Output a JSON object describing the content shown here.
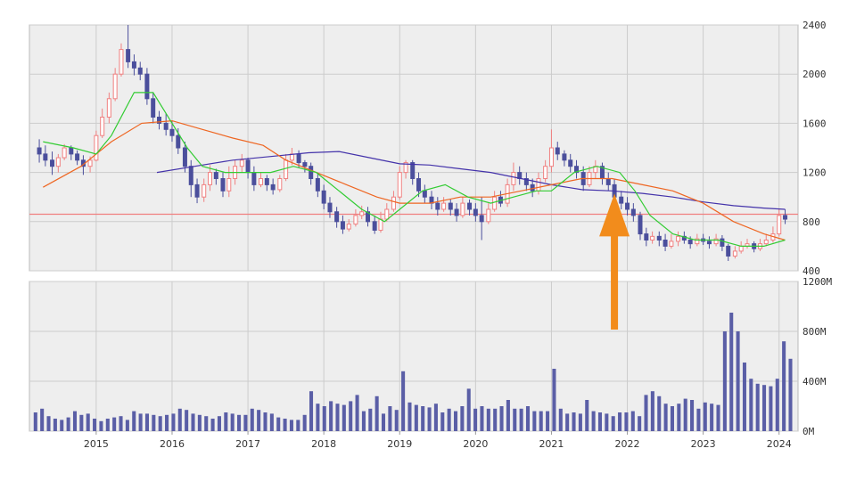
{
  "chart_data": [
    {
      "type": "candlestick",
      "panel": "price",
      "y_ticks": [
        "2400",
        "2000",
        "1600",
        "1200",
        "800",
        "400"
      ],
      "ylim": [
        400,
        2400
      ],
      "grid": true,
      "colors": {
        "up": "#f08080",
        "down": "#4b4f9c",
        "ma_short": "#33cc33",
        "ma_mid": "#ee6622",
        "ma_long": "#4433aa",
        "hline": "#f08080",
        "arrow": "#f28c1c"
      },
      "horizontal_line": 860,
      "arrow_marker": {
        "date": 2021.83,
        "from_value": 1100
      },
      "candles": [
        [
          2014.25,
          1400,
          1350,
          1470,
          1280
        ],
        [
          2014.33,
          1350,
          1300,
          1420,
          1250
        ],
        [
          2014.42,
          1300,
          1250,
          1370,
          1180
        ],
        [
          2014.5,
          1250,
          1320,
          1350,
          1200
        ],
        [
          2014.58,
          1320,
          1400,
          1430,
          1300
        ],
        [
          2014.67,
          1400,
          1350,
          1420,
          1300
        ],
        [
          2014.75,
          1350,
          1300,
          1380,
          1260
        ],
        [
          2014.83,
          1300,
          1250,
          1340,
          1180
        ],
        [
          2014.92,
          1250,
          1300,
          1330,
          1200
        ],
        [
          2015.0,
          1300,
          1500,
          1540,
          1290
        ],
        [
          2015.08,
          1500,
          1650,
          1720,
          1480
        ],
        [
          2015.17,
          1650,
          1800,
          1850,
          1600
        ],
        [
          2015.25,
          1800,
          2000,
          2050,
          1780
        ],
        [
          2015.33,
          2000,
          2200,
          2250,
          1980
        ],
        [
          2015.42,
          2200,
          2100,
          2400,
          2050
        ],
        [
          2015.5,
          2100,
          2050,
          2160,
          1990
        ],
        [
          2015.58,
          2050,
          2000,
          2100,
          1950
        ],
        [
          2015.67,
          2000,
          1800,
          2050,
          1750
        ],
        [
          2015.75,
          1800,
          1650,
          1850,
          1600
        ],
        [
          2015.83,
          1650,
          1600,
          1700,
          1550
        ],
        [
          2015.92,
          1600,
          1550,
          1680,
          1500
        ],
        [
          2016.0,
          1550,
          1500,
          1620,
          1450
        ],
        [
          2016.08,
          1500,
          1400,
          1560,
          1350
        ],
        [
          2016.17,
          1400,
          1250,
          1450,
          1200
        ],
        [
          2016.25,
          1250,
          1100,
          1300,
          1000
        ],
        [
          2016.33,
          1100,
          1000,
          1150,
          950
        ],
        [
          2016.42,
          1000,
          1100,
          1150,
          960
        ],
        [
          2016.5,
          1100,
          1200,
          1260,
          1050
        ],
        [
          2016.58,
          1200,
          1150,
          1230,
          1100
        ],
        [
          2016.67,
          1150,
          1050,
          1200,
          1000
        ],
        [
          2016.75,
          1050,
          1150,
          1250,
          1000
        ],
        [
          2016.83,
          1150,
          1250,
          1300,
          1100
        ],
        [
          2016.92,
          1250,
          1300,
          1350,
          1200
        ],
        [
          2017.0,
          1300,
          1200,
          1320,
          1150
        ],
        [
          2017.08,
          1200,
          1100,
          1250,
          1050
        ],
        [
          2017.17,
          1100,
          1150,
          1200,
          1080
        ],
        [
          2017.25,
          1150,
          1100,
          1180,
          1050
        ],
        [
          2017.33,
          1100,
          1060,
          1150,
          1020
        ],
        [
          2017.42,
          1060,
          1150,
          1180,
          1040
        ],
        [
          2017.5,
          1150,
          1300,
          1350,
          1130
        ],
        [
          2017.58,
          1300,
          1350,
          1400,
          1260
        ],
        [
          2017.67,
          1350,
          1280,
          1380,
          1240
        ],
        [
          2017.75,
          1280,
          1250,
          1300,
          1200
        ],
        [
          2017.83,
          1250,
          1150,
          1280,
          1100
        ],
        [
          2017.92,
          1150,
          1050,
          1200,
          1000
        ],
        [
          2018.0,
          1050,
          950,
          1100,
          900
        ],
        [
          2018.08,
          950,
          880,
          1000,
          830
        ],
        [
          2018.17,
          880,
          800,
          920,
          750
        ],
        [
          2018.25,
          800,
          740,
          850,
          700
        ],
        [
          2018.33,
          740,
          780,
          820,
          720
        ],
        [
          2018.42,
          780,
          850,
          900,
          760
        ],
        [
          2018.5,
          850,
          880,
          930,
          820
        ],
        [
          2018.58,
          880,
          800,
          920,
          760
        ],
        [
          2018.67,
          800,
          730,
          850,
          700
        ],
        [
          2018.75,
          730,
          820,
          880,
          710
        ],
        [
          2018.83,
          820,
          900,
          950,
          800
        ],
        [
          2018.92,
          900,
          1000,
          1050,
          880
        ],
        [
          2019.0,
          1000,
          1200,
          1250,
          980
        ],
        [
          2019.08,
          1200,
          1280,
          1300,
          1150
        ],
        [
          2019.17,
          1280,
          1150,
          1300,
          1100
        ],
        [
          2019.25,
          1150,
          1050,
          1200,
          1000
        ],
        [
          2019.33,
          1050,
          1000,
          1100,
          950
        ],
        [
          2019.42,
          1000,
          950,
          1050,
          900
        ],
        [
          2019.5,
          950,
          900,
          1000,
          850
        ],
        [
          2019.58,
          900,
          950,
          1000,
          880
        ],
        [
          2019.67,
          950,
          900,
          980,
          850
        ],
        [
          2019.75,
          900,
          850,
          950,
          800
        ],
        [
          2019.83,
          850,
          950,
          1000,
          830
        ],
        [
          2019.92,
          950,
          900,
          980,
          850
        ],
        [
          2020.0,
          900,
          850,
          950,
          800
        ],
        [
          2020.08,
          850,
          800,
          1000,
          650
        ],
        [
          2020.17,
          800,
          900,
          950,
          780
        ],
        [
          2020.25,
          900,
          1000,
          1050,
          880
        ],
        [
          2020.33,
          1000,
          950,
          1050,
          920
        ],
        [
          2020.42,
          950,
          1100,
          1150,
          920
        ],
        [
          2020.5,
          1100,
          1200,
          1280,
          1050
        ],
        [
          2020.58,
          1200,
          1150,
          1250,
          1100
        ],
        [
          2020.67,
          1150,
          1100,
          1200,
          1050
        ],
        [
          2020.75,
          1100,
          1050,
          1150,
          1000
        ],
        [
          2020.83,
          1050,
          1150,
          1200,
          1020
        ],
        [
          2020.92,
          1150,
          1250,
          1300,
          1120
        ],
        [
          2021.0,
          1250,
          1400,
          1550,
          1200
        ],
        [
          2021.08,
          1400,
          1350,
          1450,
          1300
        ],
        [
          2021.17,
          1350,
          1300,
          1380,
          1250
        ],
        [
          2021.25,
          1300,
          1250,
          1350,
          1200
        ],
        [
          2021.33,
          1250,
          1200,
          1300,
          1150
        ],
        [
          2021.42,
          1200,
          1100,
          1250,
          1050
        ],
        [
          2021.5,
          1100,
          1200,
          1250,
          1080
        ],
        [
          2021.58,
          1200,
          1250,
          1300,
          1150
        ],
        [
          2021.67,
          1250,
          1150,
          1280,
          1100
        ],
        [
          2021.75,
          1150,
          1100,
          1200,
          1050
        ],
        [
          2021.83,
          1100,
          1000,
          1150,
          950
        ],
        [
          2021.92,
          1000,
          950,
          1050,
          900
        ],
        [
          2022.0,
          950,
          900,
          1000,
          850
        ],
        [
          2022.08,
          900,
          850,
          950,
          800
        ],
        [
          2022.17,
          850,
          700,
          880,
          650
        ],
        [
          2022.25,
          700,
          650,
          750,
          600
        ],
        [
          2022.33,
          650,
          680,
          720,
          620
        ],
        [
          2022.42,
          680,
          650,
          720,
          600
        ],
        [
          2022.5,
          650,
          600,
          700,
          560
        ],
        [
          2022.58,
          600,
          640,
          700,
          580
        ],
        [
          2022.67,
          640,
          680,
          720,
          600
        ],
        [
          2022.75,
          680,
          650,
          720,
          620
        ],
        [
          2022.83,
          650,
          620,
          680,
          580
        ],
        [
          2022.92,
          620,
          660,
          700,
          600
        ],
        [
          2023.0,
          660,
          640,
          700,
          610
        ],
        [
          2023.08,
          640,
          620,
          680,
          580
        ],
        [
          2023.17,
          620,
          660,
          700,
          600
        ],
        [
          2023.25,
          660,
          600,
          690,
          560
        ],
        [
          2023.33,
          600,
          520,
          620,
          480
        ],
        [
          2023.42,
          520,
          560,
          600,
          500
        ],
        [
          2023.5,
          560,
          600,
          640,
          540
        ],
        [
          2023.58,
          600,
          620,
          660,
          580
        ],
        [
          2023.67,
          620,
          580,
          640,
          550
        ],
        [
          2023.75,
          580,
          620,
          660,
          560
        ],
        [
          2023.83,
          620,
          650,
          700,
          600
        ],
        [
          2023.92,
          650,
          700,
          760,
          630
        ],
        [
          2024.0,
          700,
          850,
          900,
          680
        ],
        [
          2024.08,
          850,
          820,
          900,
          780
        ]
      ],
      "ma_short": [
        [
          2014.3,
          1450
        ],
        [
          2014.7,
          1400
        ],
        [
          2015.0,
          1350
        ],
        [
          2015.2,
          1500
        ],
        [
          2015.5,
          1850
        ],
        [
          2015.75,
          1850
        ],
        [
          2016.0,
          1600
        ],
        [
          2016.2,
          1400
        ],
        [
          2016.4,
          1250
        ],
        [
          2016.7,
          1200
        ],
        [
          2017.0,
          1200
        ],
        [
          2017.3,
          1200
        ],
        [
          2017.6,
          1250
        ],
        [
          2017.9,
          1200
        ],
        [
          2018.2,
          1050
        ],
        [
          2018.5,
          900
        ],
        [
          2018.8,
          800
        ],
        [
          2019.0,
          900
        ],
        [
          2019.3,
          1050
        ],
        [
          2019.6,
          1100
        ],
        [
          2019.9,
          1000
        ],
        [
          2020.2,
          950
        ],
        [
          2020.5,
          1000
        ],
        [
          2020.8,
          1050
        ],
        [
          2021.0,
          1050
        ],
        [
          2021.3,
          1200
        ],
        [
          2021.6,
          1250
        ],
        [
          2021.9,
          1200
        ],
        [
          2022.1,
          1050
        ],
        [
          2022.3,
          850
        ],
        [
          2022.6,
          700
        ],
        [
          2022.9,
          650
        ],
        [
          2023.2,
          650
        ],
        [
          2023.5,
          600
        ],
        [
          2023.8,
          600
        ],
        [
          2024.08,
          650
        ]
      ],
      "ma_mid": [
        [
          2014.3,
          1080
        ],
        [
          2014.8,
          1250
        ],
        [
          2015.2,
          1450
        ],
        [
          2015.6,
          1600
        ],
        [
          2016.0,
          1620
        ],
        [
          2016.4,
          1550
        ],
        [
          2016.8,
          1480
        ],
        [
          2017.2,
          1420
        ],
        [
          2017.5,
          1300
        ],
        [
          2017.9,
          1200
        ],
        [
          2018.3,
          1100
        ],
        [
          2018.7,
          1000
        ],
        [
          2019.0,
          950
        ],
        [
          2019.4,
          950
        ],
        [
          2019.8,
          1000
        ],
        [
          2020.2,
          1000
        ],
        [
          2020.6,
          1050
        ],
        [
          2021.0,
          1100
        ],
        [
          2021.4,
          1150
        ],
        [
          2021.8,
          1150
        ],
        [
          2022.2,
          1100
        ],
        [
          2022.6,
          1050
        ],
        [
          2023.0,
          950
        ],
        [
          2023.4,
          800
        ],
        [
          2023.8,
          700
        ],
        [
          2024.08,
          650
        ]
      ],
      "ma_long": [
        [
          2015.8,
          1200
        ],
        [
          2016.3,
          1250
        ],
        [
          2016.8,
          1300
        ],
        [
          2017.3,
          1330
        ],
        [
          2017.8,
          1360
        ],
        [
          2018.2,
          1370
        ],
        [
          2018.6,
          1320
        ],
        [
          2019.0,
          1270
        ],
        [
          2019.4,
          1260
        ],
        [
          2019.8,
          1230
        ],
        [
          2020.2,
          1200
        ],
        [
          2020.6,
          1150
        ],
        [
          2021.0,
          1100
        ],
        [
          2021.4,
          1060
        ],
        [
          2021.8,
          1050
        ],
        [
          2022.2,
          1030
        ],
        [
          2022.6,
          1000
        ],
        [
          2023.0,
          960
        ],
        [
          2023.4,
          930
        ],
        [
          2023.8,
          910
        ],
        [
          2024.08,
          900
        ]
      ]
    },
    {
      "type": "bar",
      "panel": "volume",
      "y_ticks": [
        "1200M",
        "800M",
        "400M",
        "0M"
      ],
      "ylim": [
        0,
        1200
      ],
      "x_ticks": [
        "2015",
        "2016",
        "2017",
        "2018",
        "2019",
        "2020",
        "2021",
        "2022",
        "2023",
        "2024"
      ],
      "x_tick_values": [
        2015,
        2016,
        2017,
        2018,
        2019,
        2020,
        2021,
        2022,
        2023,
        2024
      ],
      "xlim": [
        2014.12,
        2024.25
      ],
      "grid": true,
      "color": "#5a5ea6",
      "values": [
        150,
        180,
        120,
        100,
        90,
        110,
        160,
        130,
        140,
        100,
        80,
        100,
        110,
        120,
        90,
        160,
        140,
        140,
        130,
        120,
        130,
        140,
        180,
        170,
        140,
        130,
        120,
        100,
        120,
        150,
        140,
        130,
        130,
        180,
        170,
        150,
        140,
        110,
        100,
        90,
        90,
        130,
        320,
        220,
        200,
        240,
        220,
        210,
        240,
        290,
        160,
        180,
        280,
        140,
        200,
        170,
        480,
        230,
        210,
        200,
        190,
        220,
        150,
        180,
        160,
        200,
        340,
        180,
        200,
        180,
        180,
        200,
        250,
        180,
        180,
        200,
        160,
        160,
        160,
        500,
        180,
        140,
        150,
        140,
        250,
        160,
        150,
        140,
        120,
        150,
        150,
        160,
        120,
        290,
        320,
        280,
        220,
        200,
        220,
        260,
        250,
        180,
        230,
        220,
        210,
        800,
        950,
        800,
        550,
        420,
        380,
        370,
        360,
        420,
        720,
        580
      ]
    }
  ]
}
